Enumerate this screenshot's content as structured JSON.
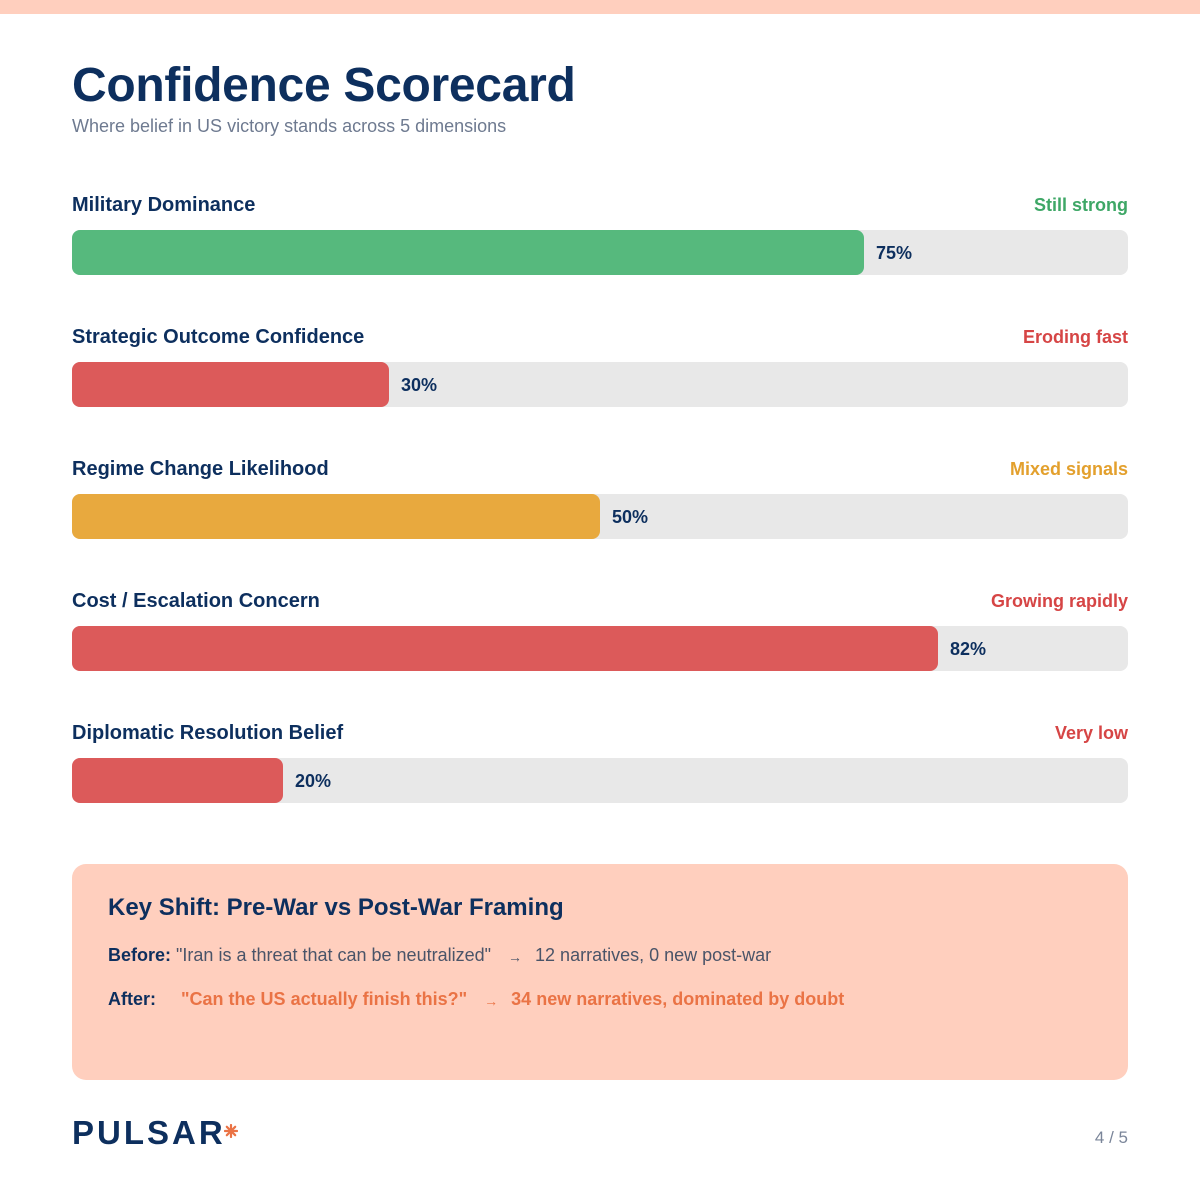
{
  "colors": {
    "navy": "#0d2f5e",
    "green": "#56b97d",
    "red": "#dc5a5a",
    "amber": "#e8a93e",
    "green_text": "#3ea766",
    "red_text": "#d64545",
    "amber_text": "#e3a02d",
    "peach": "#ffcfbe",
    "orange": "#ea7345"
  },
  "chart_data": {
    "type": "bar",
    "orientation": "horizontal",
    "title": "Confidence Scorecard",
    "subtitle": "Where belief in US victory stands across 5 dimensions",
    "xlim": [
      0,
      100
    ],
    "unit": "%",
    "categories": [
      "Military Dominance",
      "Strategic Outcome Confidence",
      "Regime Change Likelihood",
      "Cost / Escalation Concern",
      "Diplomatic Resolution Belief"
    ],
    "values": [
      75,
      30,
      50,
      82,
      20
    ],
    "value_labels": [
      "75%",
      "30%",
      "50%",
      "82%",
      "20%"
    ],
    "status_labels": [
      "Still strong",
      "Eroding fast",
      "Mixed signals",
      "Growing rapidly",
      "Very low"
    ],
    "status_tones": [
      "green",
      "red",
      "amber",
      "red",
      "red"
    ]
  },
  "callout": {
    "title": "Key Shift: Pre-War vs Post-War Framing",
    "before_label": "Before:",
    "before_quote": "\"Iran is a threat that can be neutralized\"",
    "before_arrow": "→",
    "before_result": "12 narratives, 0 new post-war",
    "after_label": "After:",
    "after_quote": "\"Can the US actually finish this?\"",
    "after_arrow": "→",
    "after_result": "34 new narratives, dominated by doubt"
  },
  "footer": {
    "logo": "PULSAR",
    "page": "4 / 5"
  }
}
